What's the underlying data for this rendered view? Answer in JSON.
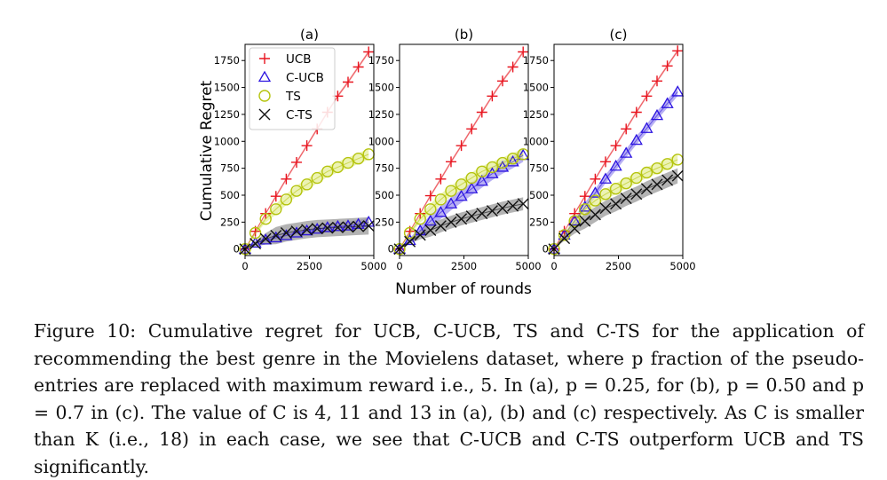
{
  "ylabel": "Cumulative Regret",
  "xlabel": "Number of rounds",
  "legend": [
    {
      "key": "ucb",
      "label": "UCB",
      "marker": "plus",
      "color": "#e8141f"
    },
    {
      "key": "cucb",
      "label": "C-UCB",
      "marker": "triangle",
      "color": "#2b13e0"
    },
    {
      "key": "ts",
      "label": "TS",
      "marker": "circle",
      "color": "#b5c40e"
    },
    {
      "key": "cts",
      "label": "C-TS",
      "marker": "cross",
      "color": "#111111"
    }
  ],
  "colors": {
    "ucb_band": "#f4a7a7",
    "cucb_band": "#9f94ef",
    "ts_band": "#e6ef9b",
    "cts_band": "#9a9a9a"
  },
  "chart_data": [
    {
      "type": "line",
      "title": "(a)",
      "xlim": [
        0,
        5000
      ],
      "ylim": [
        -60,
        1900
      ],
      "xticks": [
        "0",
        "2500",
        "5000"
      ],
      "yticks": [
        "0",
        "250",
        "500",
        "750",
        "1000",
        "1250",
        "1500",
        "1750"
      ],
      "x": [
        0,
        400,
        800,
        1200,
        1600,
        2000,
        2400,
        2800,
        3200,
        3600,
        4000,
        4400,
        4800
      ],
      "series": [
        {
          "key": "ucb",
          "name": "UCB",
          "values": [
            0,
            165,
            330,
            490,
            650,
            805,
            960,
            1115,
            1270,
            1420,
            1550,
            1690,
            1830
          ],
          "band": 15
        },
        {
          "key": "cucb",
          "name": "C-UCB",
          "values": [
            0,
            55,
            85,
            105,
            125,
            150,
            170,
            185,
            200,
            210,
            215,
            230,
            250
          ],
          "band": 40
        },
        {
          "key": "ts",
          "name": "TS",
          "values": [
            0,
            150,
            280,
            370,
            460,
            540,
            600,
            660,
            720,
            760,
            800,
            840,
            880
          ],
          "band": 50
        },
        {
          "key": "cts",
          "name": "C-TS",
          "values": [
            0,
            50,
            95,
            125,
            150,
            165,
            180,
            190,
            195,
            200,
            205,
            210,
            215
          ],
          "band": 80
        }
      ]
    },
    {
      "type": "line",
      "title": "(b)",
      "xlim": [
        0,
        5000
      ],
      "ylim": [
        -60,
        1900
      ],
      "xticks": [
        "0",
        "2500",
        "5000"
      ],
      "yticks": [
        "0",
        "250",
        "500",
        "750",
        "1000",
        "1250",
        "1500",
        "1750"
      ],
      "x": [
        0,
        400,
        800,
        1200,
        1600,
        2000,
        2400,
        2800,
        3200,
        3600,
        4000,
        4400,
        4800
      ],
      "series": [
        {
          "key": "ucb",
          "name": "UCB",
          "values": [
            0,
            165,
            330,
            495,
            650,
            810,
            960,
            1115,
            1270,
            1420,
            1560,
            1690,
            1830
          ],
          "band": 15
        },
        {
          "key": "cucb",
          "name": "C-UCB",
          "values": [
            0,
            80,
            170,
            260,
            340,
            420,
            490,
            560,
            630,
            700,
            760,
            810,
            870
          ],
          "band": 60
        },
        {
          "key": "ts",
          "name": "TS",
          "values": [
            0,
            150,
            280,
            370,
            460,
            540,
            600,
            660,
            720,
            760,
            800,
            840,
            880
          ],
          "band": 50
        },
        {
          "key": "cts",
          "name": "C-TS",
          "values": [
            0,
            70,
            130,
            175,
            215,
            250,
            280,
            305,
            330,
            355,
            380,
            400,
            420
          ],
          "band": 60
        }
      ]
    },
    {
      "type": "line",
      "title": "(c)",
      "xlim": [
        0,
        5000
      ],
      "ylim": [
        -60,
        1900
      ],
      "xticks": [
        "0",
        "2500",
        "5000"
      ],
      "yticks": [
        "0",
        "250",
        "500",
        "750",
        "1000",
        "1250",
        "1500",
        "1750"
      ],
      "x": [
        0,
        400,
        800,
        1200,
        1600,
        2000,
        2400,
        2800,
        3200,
        3600,
        4000,
        4400,
        4800
      ],
      "series": [
        {
          "key": "ucb",
          "name": "UCB",
          "values": [
            0,
            165,
            330,
            490,
            650,
            810,
            960,
            1115,
            1270,
            1420,
            1560,
            1700,
            1840
          ],
          "band": 15
        },
        {
          "key": "cucb",
          "name": "C-UCB",
          "values": [
            0,
            130,
            260,
            390,
            520,
            650,
            770,
            890,
            1010,
            1120,
            1240,
            1350,
            1460
          ],
          "band": 40
        },
        {
          "key": "ts",
          "name": "TS",
          "values": [
            0,
            130,
            260,
            370,
            450,
            510,
            560,
            610,
            660,
            710,
            750,
            790,
            830
          ],
          "band": 50
        },
        {
          "key": "cts",
          "name": "C-TS",
          "values": [
            0,
            100,
            190,
            260,
            320,
            380,
            420,
            470,
            510,
            560,
            600,
            640,
            680
          ],
          "band": 70
        }
      ]
    }
  ],
  "caption": {
    "number": "Figure 10:",
    "text": "Cumulative regret for UCB, C-UCB, TS and C-TS for the application of recommending the best genre in the Movielens dataset, where p fraction of the pseudo-entries are replaced with maximum reward i.e., 5. In (a), p = 0.25, for (b), p = 0.50 and p = 0.7 in (c). The value of C is 4, 11 and 13 in (a), (b) and (c) respectively. As C is smaller than K (i.e., 18) in each case, we see that C-UCB and C-TS outperform UCB and TS significantly."
  }
}
